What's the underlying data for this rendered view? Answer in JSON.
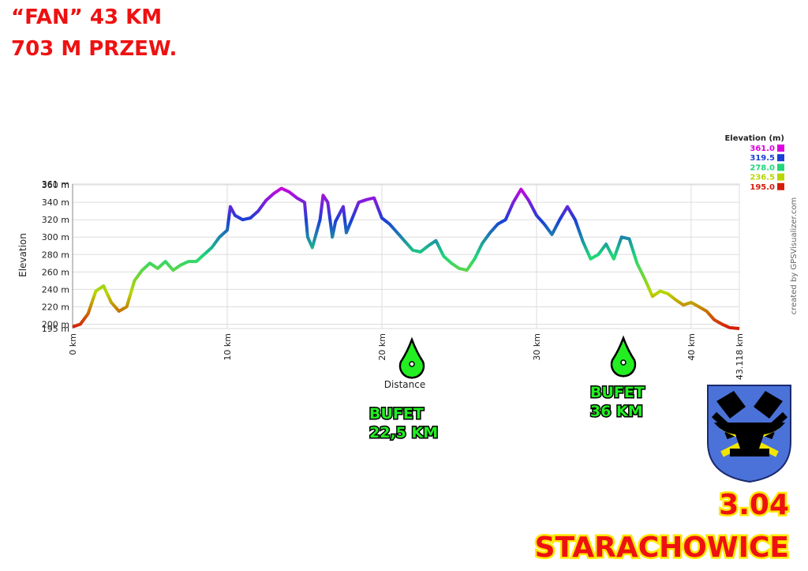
{
  "header": {
    "title": "“FAN” 43 KM",
    "subtitle": "703 M PRZEW."
  },
  "chart_data": {
    "type": "line",
    "x_label": "Distance",
    "y_label": "Elevation",
    "credit": "created by GPSVisualizer.com",
    "legend_title": "Elevation (m)",
    "color_scale": [
      {
        "value": 361,
        "label": "361.0",
        "color": "#dd00dd"
      },
      {
        "value": 319.5,
        "label": "319.5",
        "color": "#1a3fd6"
      },
      {
        "value": 278,
        "label": "278.0",
        "color": "#1fd67a"
      },
      {
        "value": 236.5,
        "label": "236.5",
        "color": "#b8d600"
      },
      {
        "value": 195,
        "label": "195.0",
        "color": "#d61a0a"
      }
    ],
    "xlim": [
      0,
      43.118
    ],
    "ylim": [
      195,
      361
    ],
    "xticks": [
      {
        "value": 0,
        "label": "0 km"
      },
      {
        "value": 10,
        "label": "10 km"
      },
      {
        "value": 20,
        "label": "20 km"
      },
      {
        "value": 30,
        "label": "30 km"
      },
      {
        "value": 40,
        "label": "40 km"
      },
      {
        "value": 43.118,
        "label": "43.118 km"
      }
    ],
    "yticks": [
      {
        "value": 195,
        "label": "195 m"
      },
      {
        "value": 200,
        "label": "200 m"
      },
      {
        "value": 220,
        "label": "220 m"
      },
      {
        "value": 240,
        "label": "240 m"
      },
      {
        "value": 260,
        "label": "260 m"
      },
      {
        "value": 280,
        "label": "280 m"
      },
      {
        "value": 300,
        "label": "300 m"
      },
      {
        "value": 320,
        "label": "320 m"
      },
      {
        "value": 340,
        "label": "340 m"
      },
      {
        "value": 360,
        "label": "360 m"
      },
      {
        "value": 361,
        "label": "361 m"
      }
    ],
    "grid": true,
    "x": [
      0,
      0.5,
      1,
      1.5,
      2,
      2.5,
      3,
      3.5,
      4,
      4.5,
      5,
      5.5,
      6,
      6.5,
      7,
      7.5,
      8,
      8.5,
      9,
      9.5,
      10,
      10.2,
      10.5,
      11,
      11.5,
      12,
      12.5,
      13,
      13.5,
      14,
      14.5,
      15,
      15.2,
      15.5,
      16,
      16.2,
      16.5,
      16.8,
      17,
      17.5,
      17.7,
      18,
      18.5,
      19,
      19.5,
      20,
      20.5,
      21,
      21.5,
      22,
      22.5,
      23,
      23.5,
      24,
      24.5,
      25,
      25.5,
      26,
      26.5,
      27,
      27.5,
      28,
      28.5,
      29,
      29.5,
      30,
      30.5,
      31,
      31.5,
      32,
      32.5,
      33,
      33.5,
      34,
      34.5,
      35,
      35.5,
      36,
      36.5,
      37,
      37.5,
      38,
      38.5,
      39,
      39.5,
      40,
      40.5,
      41,
      41.5,
      42,
      42.5,
      43.118
    ],
    "values": [
      197,
      200,
      212,
      238,
      244,
      225,
      215,
      220,
      250,
      262,
      270,
      264,
      272,
      262,
      268,
      272,
      272,
      280,
      288,
      300,
      308,
      335,
      325,
      320,
      322,
      330,
      342,
      350,
      356,
      352,
      345,
      340,
      300,
      288,
      320,
      348,
      340,
      300,
      318,
      335,
      305,
      318,
      340,
      343,
      345,
      322,
      315,
      305,
      295,
      285,
      283,
      290,
      296,
      278,
      270,
      264,
      262,
      275,
      293,
      305,
      315,
      320,
      340,
      355,
      342,
      325,
      315,
      303,
      320,
      335,
      320,
      295,
      275,
      280,
      292,
      275,
      300,
      298,
      270,
      252,
      232,
      238,
      235,
      228,
      222,
      225,
      220,
      215,
      205,
      200,
      196,
      195
    ],
    "annotations": [
      {
        "lines": [
          "BUFET",
          "22,5 KM"
        ]
      },
      {
        "lines": [
          "BUFET",
          "36 KM"
        ]
      }
    ]
  },
  "footer": {
    "date": "3.04",
    "city": "STARACHOWICE"
  }
}
